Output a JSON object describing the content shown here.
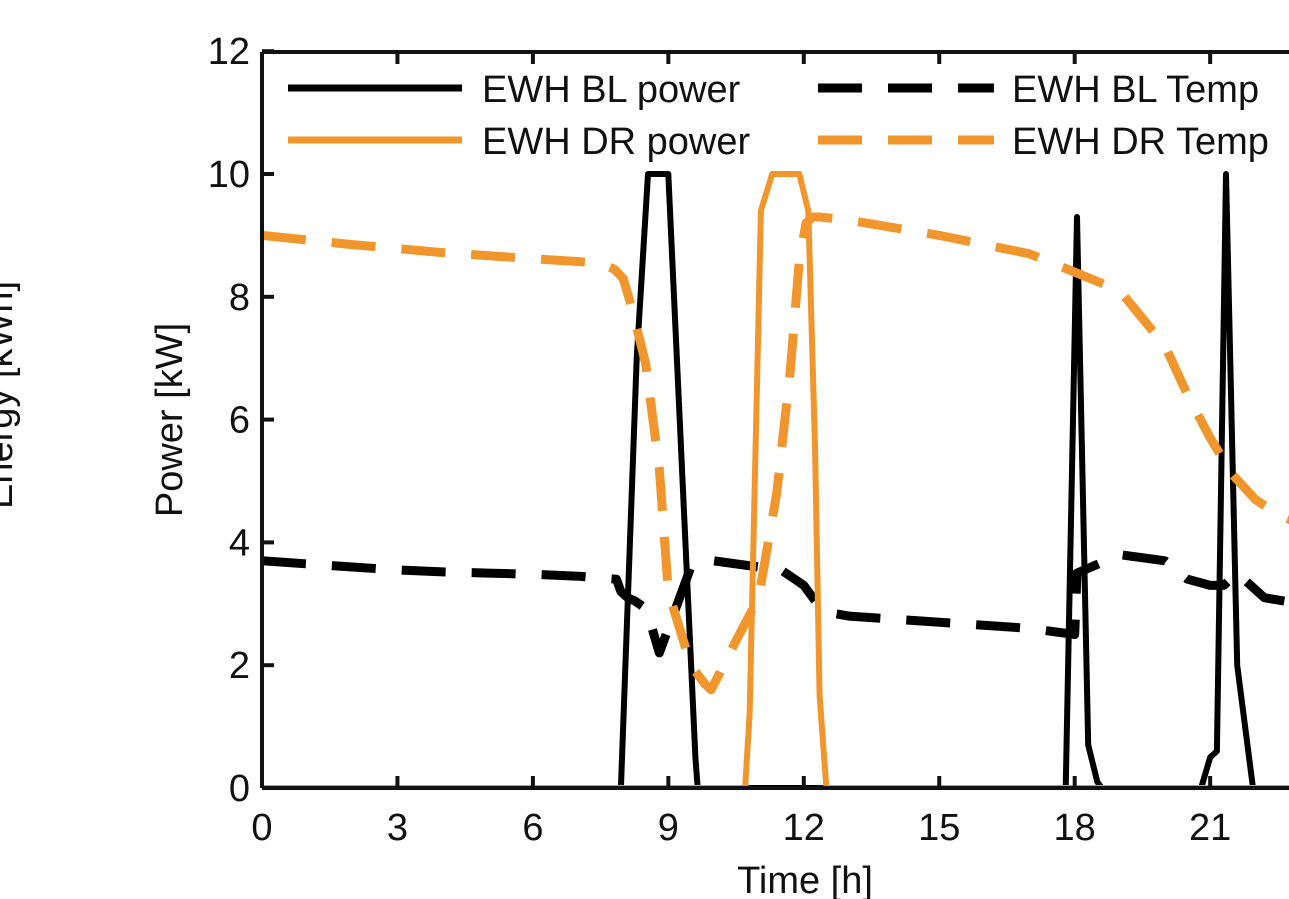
{
  "chart_data": {
    "type": "line",
    "title": "",
    "xlabel": "Time [h]",
    "ylabel": "Power [kW]",
    "left_axis_fragment": "Energy [kWh]",
    "xlim": [
      0,
      23
    ],
    "ylim": [
      0,
      12
    ],
    "xticks": [
      0,
      3,
      6,
      9,
      12,
      15,
      18,
      21
    ],
    "yticks": [
      0,
      2,
      4,
      6,
      8,
      10,
      12
    ],
    "grid": false,
    "legend_position": "top",
    "series": [
      {
        "name": "EWH BL power",
        "color": "#000000",
        "dash": "solid",
        "x": [
          0,
          7.95,
          8.3,
          8.55,
          9.0,
          9.6,
          9.65,
          17.75,
          17.8,
          18.05,
          18.3,
          18.5,
          18.6,
          20.8,
          21.0,
          21.15,
          21.35,
          21.6,
          21.95,
          22.0,
          23
        ],
        "y": [
          0,
          0,
          7,
          10,
          10,
          0.5,
          0,
          0,
          0,
          9.3,
          0.7,
          0.1,
          0,
          0,
          0.5,
          0.6,
          10,
          2,
          0,
          0,
          0
        ]
      },
      {
        "name": "EWH BL Temp",
        "color": "#000000",
        "dash": "dashed",
        "x": [
          0,
          1,
          2,
          3,
          4,
          5,
          6,
          7,
          7.85,
          7.95,
          8.1,
          8.25,
          8.45,
          8.6,
          8.8,
          9.0,
          9.2,
          9.5,
          10.0,
          11.0,
          11.5,
          11.8,
          12.0,
          12.3,
          12.6,
          13.0,
          15.0,
          17.0,
          17.5,
          18.0,
          18.05,
          19.0,
          20.0,
          20.5,
          21.0,
          21.3,
          21.6,
          22.2,
          23.0
        ],
        "y": [
          3.7,
          3.65,
          3.6,
          3.55,
          3.52,
          3.5,
          3.48,
          3.45,
          3.4,
          3.2,
          3.1,
          3.05,
          2.95,
          2.7,
          2.2,
          2.6,
          3.0,
          3.6,
          3.7,
          3.6,
          3.55,
          3.4,
          3.3,
          3.0,
          2.85,
          2.8,
          2.7,
          2.6,
          2.55,
          2.5,
          3.5,
          3.8,
          3.7,
          3.4,
          3.3,
          3.3,
          3.5,
          3.1,
          3.0
        ]
      },
      {
        "name": "EWH DR power",
        "color": "#F0962D",
        "dash": "solid",
        "x": [
          0,
          10.7,
          10.8,
          11.05,
          11.3,
          11.55,
          11.9,
          12.1,
          12.25,
          12.35,
          12.5,
          23
        ],
        "y": [
          0,
          0,
          1.2,
          9.4,
          10,
          10,
          10,
          9.4,
          5.5,
          1.5,
          0,
          0
        ]
      },
      {
        "name": "EWH DR Temp",
        "color": "#F0962D",
        "dash": "dashed",
        "x": [
          0,
          2,
          4,
          6,
          7.5,
          7.8,
          8.0,
          8.2,
          8.5,
          8.8,
          9.0,
          9.5,
          9.8,
          9.95,
          10.5,
          11.0,
          11.4,
          11.7,
          11.9,
          12.05,
          12.2,
          12.35,
          13.0,
          15.0,
          17.0,
          18.0,
          19.0,
          20.0,
          20.5,
          21.0,
          21.5,
          22.0,
          22.5,
          23.0
        ],
        "y": [
          9.0,
          8.85,
          8.72,
          8.62,
          8.55,
          8.45,
          8.3,
          7.8,
          6.9,
          5.2,
          3.2,
          2.0,
          1.7,
          1.6,
          2.4,
          3.1,
          4.8,
          6.8,
          8.6,
          9.2,
          9.3,
          9.3,
          9.25,
          9.0,
          8.7,
          8.4,
          8.1,
          7.2,
          6.4,
          5.7,
          5.1,
          4.7,
          4.45,
          4.3
        ]
      }
    ]
  }
}
